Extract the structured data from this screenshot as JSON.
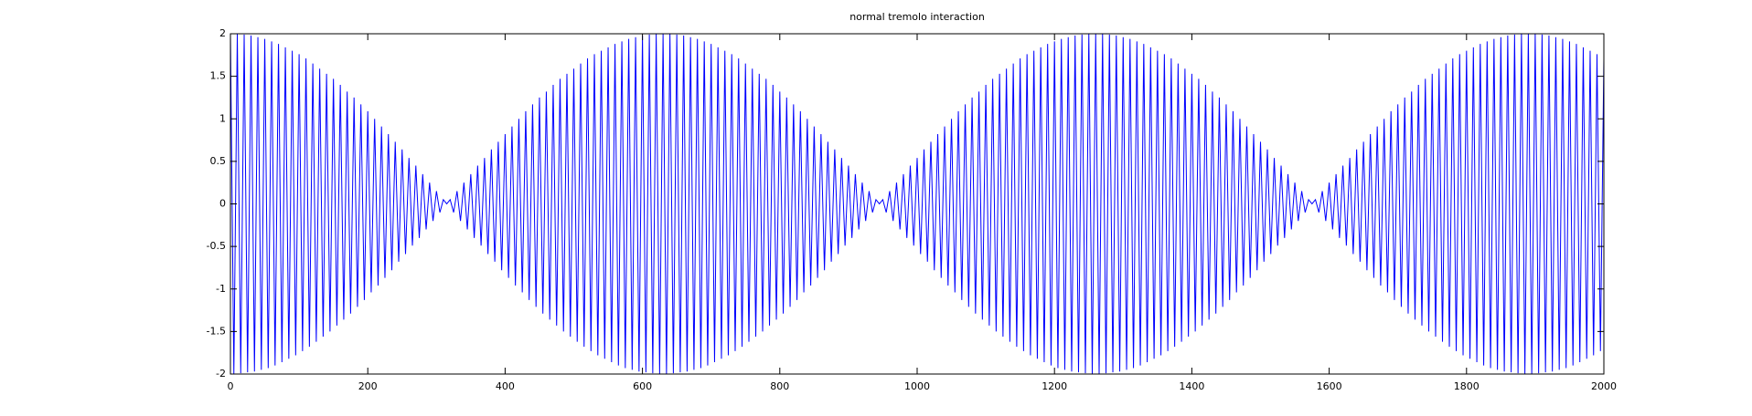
{
  "chart_data": {
    "type": "line",
    "title": "normal tremolo interaction",
    "color": "#0000ff",
    "xlim": [
      0,
      2000
    ],
    "ylim": [
      -2,
      2
    ],
    "xticks": [
      0,
      200,
      400,
      600,
      800,
      1000,
      1200,
      1400,
      1600,
      1800,
      2000
    ],
    "yticks": [
      -2,
      -1.5,
      -1,
      -0.5,
      0,
      0.5,
      1,
      1.5,
      2
    ],
    "x": [
      0,
      5,
      10,
      15,
      20,
      25,
      30,
      35,
      40,
      45,
      50,
      55,
      60,
      65,
      70,
      75,
      80,
      85,
      90,
      95,
      100,
      105,
      110,
      115,
      120,
      125,
      130,
      135,
      140,
      145,
      150,
      155,
      160,
      165,
      170,
      175,
      180,
      185,
      190,
      195,
      200,
      205,
      210,
      215,
      220,
      225,
      230,
      235,
      240,
      245,
      250,
      255,
      260,
      265,
      270,
      275,
      280,
      285,
      290,
      295,
      300,
      305,
      310,
      315,
      320,
      325,
      330,
      335,
      340,
      345,
      350,
      355,
      360,
      365,
      370,
      375,
      380,
      385,
      390,
      395,
      400,
      405,
      410,
      415,
      420,
      425,
      430,
      435,
      440,
      445,
      450,
      455,
      460,
      465,
      470,
      475,
      480,
      485,
      490,
      495,
      500,
      505,
      510,
      515,
      520,
      525,
      530,
      535,
      540,
      545,
      550,
      555,
      560,
      565,
      570,
      575,
      580,
      585,
      590,
      595,
      600,
      605,
      610,
      615,
      620,
      625,
      630,
      635,
      640,
      645,
      650,
      655,
      660,
      665,
      670,
      675,
      680,
      685,
      690,
      695,
      700,
      705,
      710,
      715,
      720,
      725,
      730,
      735,
      740,
      745,
      750,
      755,
      760,
      765,
      770,
      775,
      780,
      785,
      790,
      795,
      800,
      805,
      810,
      815,
      820,
      825,
      830,
      835,
      840,
      845,
      850,
      855,
      860,
      865,
      870,
      875,
      880,
      885,
      890,
      895,
      900,
      905,
      910,
      915,
      920,
      925,
      930,
      935,
      940,
      945,
      950,
      955,
      960,
      965,
      970,
      975,
      980,
      985,
      990,
      995,
      1000,
      1005,
      1010,
      1015,
      1020,
      1025,
      1030,
      1035,
      1040,
      1045,
      1050,
      1055,
      1060,
      1065,
      1070,
      1075,
      1080,
      1085,
      1090,
      1095,
      1100,
      1105,
      1110,
      1115,
      1120,
      1125,
      1130,
      1135,
      1140,
      1145,
      1150,
      1155,
      1160,
      1165,
      1170,
      1175,
      1180,
      1185,
      1190,
      1195,
      1200,
      1205,
      1210,
      1215,
      1220,
      1225,
      1230,
      1235,
      1240,
      1245,
      1250,
      1255,
      1260,
      1265,
      1270,
      1275,
      1280,
      1285,
      1290,
      1295,
      1300,
      1305,
      1310,
      1315,
      1320,
      1325,
      1330,
      1335,
      1340,
      1345,
      1350,
      1355,
      1360,
      1365,
      1370,
      1375,
      1380,
      1385,
      1390,
      1395,
      1400,
      1405,
      1410,
      1415,
      1420,
      1425,
      1430,
      1435,
      1440,
      1445,
      1450,
      1455,
      1460,
      1465,
      1470,
      1475,
      1480,
      1485,
      1490,
      1495,
      1500,
      1505,
      1510,
      1515,
      1520,
      1525,
      1530,
      1535,
      1540,
      1545,
      1550,
      1555,
      1560,
      1565,
      1570,
      1575,
      1580,
      1585,
      1590,
      1595,
      1600,
      1605,
      1610,
      1615,
      1620,
      1625,
      1630,
      1635,
      1640,
      1645,
      1650,
      1655,
      1660,
      1665,
      1670,
      1675,
      1680,
      1685,
      1690,
      1695,
      1700,
      1705,
      1710,
      1715,
      1720,
      1725,
      1730,
      1735,
      1740,
      1745,
      1750,
      1755,
      1760,
      1765,
      1770,
      1775,
      1780,
      1785,
      1790,
      1795,
      1800,
      1805,
      1810,
      1815,
      1820,
      1825,
      1830,
      1835,
      1840,
      1845,
      1850,
      1855,
      1860,
      1865,
      1870,
      1875,
      1880,
      1885,
      1890,
      1895,
      1900,
      1905,
      1910,
      1915,
      1920,
      1925,
      1930,
      1935,
      1940,
      1945,
      1950,
      1955,
      1960,
      1965,
      1970,
      1975,
      1980,
      1985,
      1990,
      1995,
      2000
    ],
    "values": [
      2,
      -2,
      2,
      -1.99,
      1.99,
      -1.98,
      1.98,
      -1.97,
      1.96,
      -1.95,
      1.94,
      -1.93,
      1.91,
      -1.9,
      1.88,
      -1.86,
      1.84,
      -1.82,
      1.8,
      -1.78,
      1.76,
      -1.73,
      1.71,
      -1.68,
      1.65,
      -1.62,
      1.59,
      -1.56,
      1.53,
      -1.5,
      1.47,
      -1.43,
      1.4,
      -1.36,
      1.32,
      -1.29,
      1.25,
      -1.21,
      1.17,
      -1.13,
      1.09,
      -1.04,
      1,
      -0.96,
      0.91,
      -0.87,
      0.82,
      -0.78,
      0.73,
      -0.68,
      0.64,
      -0.59,
      0.54,
      -0.49,
      0.45,
      -0.4,
      0.35,
      -0.3,
      0.25,
      -0.2,
      0.15,
      -0.1,
      0.05,
      0,
      0.05,
      -0.1,
      0.15,
      -0.2,
      0.25,
      -0.3,
      0.35,
      -0.4,
      0.45,
      -0.49,
      0.54,
      -0.59,
      0.64,
      -0.68,
      0.73,
      -0.78,
      0.82,
      -0.87,
      0.91,
      -0.96,
      1,
      -1.04,
      1.09,
      -1.13,
      1.17,
      -1.21,
      1.25,
      -1.29,
      1.32,
      -1.36,
      1.4,
      -1.43,
      1.47,
      -1.5,
      1.53,
      -1.56,
      1.59,
      -1.62,
      1.65,
      -1.68,
      1.71,
      -1.73,
      1.76,
      -1.78,
      1.8,
      -1.82,
      1.84,
      -1.86,
      1.88,
      -1.9,
      1.91,
      -1.93,
      1.94,
      -1.95,
      1.96,
      -1.97,
      1.98,
      -1.98,
      1.99,
      -1.99,
      2,
      -2,
      2,
      -2,
      2,
      -1.99,
      1.99,
      -1.98,
      1.98,
      -1.97,
      1.96,
      -1.95,
      1.94,
      -1.93,
      1.91,
      -1.9,
      1.88,
      -1.86,
      1.84,
      -1.82,
      1.8,
      -1.78,
      1.76,
      -1.73,
      1.71,
      -1.68,
      1.65,
      -1.62,
      1.59,
      -1.56,
      1.53,
      -1.5,
      1.47,
      -1.43,
      1.4,
      -1.36,
      1.32,
      -1.29,
      1.25,
      -1.21,
      1.17,
      -1.13,
      1.09,
      -1.04,
      1,
      -0.96,
      0.91,
      -0.87,
      0.82,
      -0.78,
      0.73,
      -0.68,
      0.64,
      -0.59,
      0.54,
      -0.49,
      0.45,
      -0.4,
      0.35,
      -0.3,
      0.25,
      -0.2,
      0.15,
      -0.1,
      0.05,
      0,
      0.05,
      -0.1,
      0.15,
      -0.2,
      0.25,
      -0.3,
      0.35,
      -0.4,
      0.45,
      -0.49,
      0.54,
      -0.59,
      0.64,
      -0.68,
      0.73,
      -0.78,
      0.82,
      -0.87,
      0.91,
      -0.96,
      1,
      -1.04,
      1.09,
      -1.13,
      1.17,
      -1.21,
      1.25,
      -1.29,
      1.32,
      -1.36,
      1.4,
      -1.43,
      1.47,
      -1.5,
      1.53,
      -1.56,
      1.59,
      -1.62,
      1.65,
      -1.68,
      1.71,
      -1.73,
      1.76,
      -1.78,
      1.8,
      -1.82,
      1.84,
      -1.86,
      1.88,
      -1.9,
      1.91,
      -1.93,
      1.94,
      -1.95,
      1.96,
      -1.97,
      1.98,
      -1.98,
      1.99,
      -1.99,
      2,
      -2,
      2,
      -2,
      2,
      -1.99,
      1.99,
      -1.98,
      1.98,
      -1.97,
      1.96,
      -1.95,
      1.94,
      -1.93,
      1.91,
      -1.9,
      1.88,
      -1.86,
      1.84,
      -1.82,
      1.8,
      -1.78,
      1.76,
      -1.73,
      1.71,
      -1.68,
      1.65,
      -1.62,
      1.59,
      -1.56,
      1.53,
      -1.5,
      1.47,
      -1.43,
      1.4,
      -1.36,
      1.32,
      -1.29,
      1.25,
      -1.21,
      1.17,
      -1.13,
      1.09,
      -1.04,
      1,
      -0.96,
      0.91,
      -0.87,
      0.82,
      -0.78,
      0.73,
      -0.68,
      0.64,
      -0.59,
      0.54,
      -0.49,
      0.45,
      -0.4,
      0.35,
      -0.3,
      0.25,
      -0.2,
      0.15,
      -0.1,
      0.05,
      0,
      0.05,
      -0.1,
      0.15,
      -0.2,
      0.25,
      -0.3,
      0.35,
      -0.4,
      0.45,
      -0.49,
      0.54,
      -0.59,
      0.64,
      -0.68,
      0.73,
      -0.78,
      0.82,
      -0.87,
      0.91,
      -0.96,
      1,
      -1.04,
      1.09,
      -1.13,
      1.17,
      -1.21,
      1.25,
      -1.29,
      1.32,
      -1.36,
      1.4,
      -1.43,
      1.47,
      -1.5,
      1.53,
      -1.56,
      1.59,
      -1.62,
      1.65,
      -1.68,
      1.71,
      -1.73,
      1.76,
      -1.78,
      1.8,
      -1.82,
      1.84,
      -1.86,
      1.88,
      -1.9,
      1.91,
      -1.93,
      1.94,
      -1.95,
      1.96,
      -1.97,
      1.98,
      -1.98,
      1.99,
      -1.99,
      2,
      -2,
      2,
      -2,
      2,
      -1.99,
      1.99,
      -1.98,
      1.98,
      -1.97,
      1.96,
      -1.95,
      1.94,
      -1.93,
      1.91,
      -1.9,
      1.88,
      -1.86,
      1.84,
      -1.82,
      1.8,
      -1.78,
      1.76,
      -1.73,
      1.71
    ]
  }
}
